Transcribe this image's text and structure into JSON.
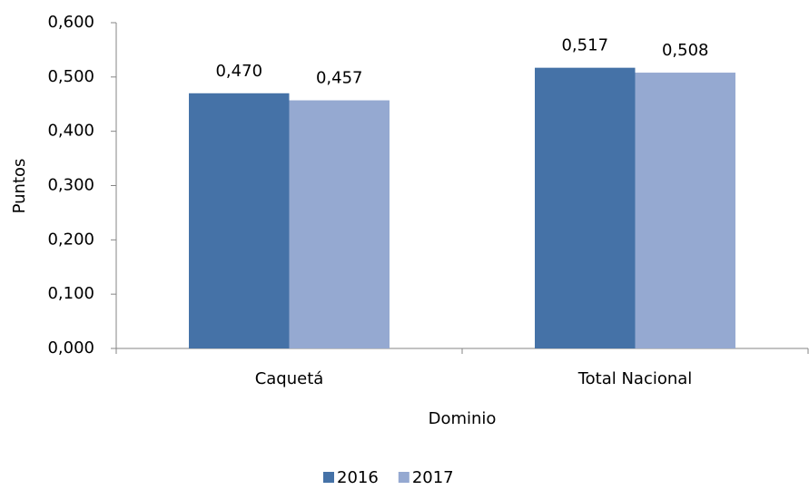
{
  "chart_data": {
    "type": "bar",
    "categories": [
      "Caquetá",
      "Total Nacional"
    ],
    "series": [
      {
        "name": "2016",
        "color": "#4572a7",
        "values": [
          0.47,
          0.517
        ],
        "value_labels": [
          "0,470",
          "0,517"
        ]
      },
      {
        "name": "2017",
        "color": "#95a9d1",
        "values": [
          0.457,
          0.508
        ],
        "value_labels": [
          "0,457",
          "0,508"
        ]
      }
    ],
    "y_label": "Puntos",
    "x_label": "Dominio",
    "ylim": [
      0,
      0.6
    ],
    "yticks": [
      {
        "value": 0,
        "label": "0,000"
      },
      {
        "value": 0.1,
        "label": "0,100"
      },
      {
        "value": 0.2,
        "label": "0,200"
      },
      {
        "value": 0.3,
        "label": "0,300"
      },
      {
        "value": 0.4,
        "label": "0,400"
      },
      {
        "value": 0.5,
        "label": "0,500"
      },
      {
        "value": 0.6,
        "label": "0,600"
      }
    ],
    "grid": false,
    "legend": "bottom"
  }
}
